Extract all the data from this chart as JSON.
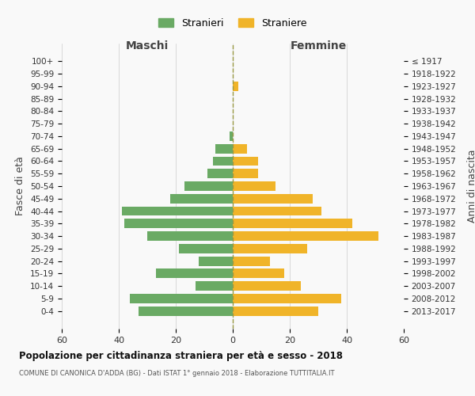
{
  "age_groups": [
    "100+",
    "95-99",
    "90-94",
    "85-89",
    "80-84",
    "75-79",
    "70-74",
    "65-69",
    "60-64",
    "55-59",
    "50-54",
    "45-49",
    "40-44",
    "35-39",
    "30-34",
    "25-29",
    "20-24",
    "15-19",
    "10-14",
    "5-9",
    "0-4"
  ],
  "birth_years": [
    "≤ 1917",
    "1918-1922",
    "1923-1927",
    "1928-1932",
    "1933-1937",
    "1938-1942",
    "1943-1947",
    "1948-1952",
    "1953-1957",
    "1958-1962",
    "1963-1967",
    "1968-1972",
    "1973-1977",
    "1978-1982",
    "1983-1987",
    "1988-1992",
    "1993-1997",
    "1998-2002",
    "2003-2007",
    "2008-2012",
    "2013-2017"
  ],
  "maschi": [
    0,
    0,
    0,
    0,
    0,
    0,
    1,
    6,
    7,
    9,
    17,
    22,
    39,
    38,
    30,
    19,
    12,
    27,
    13,
    36,
    33
  ],
  "femmine": [
    0,
    0,
    2,
    0,
    0,
    0,
    0,
    5,
    9,
    9,
    15,
    28,
    31,
    42,
    51,
    26,
    13,
    18,
    24,
    38,
    30
  ],
  "color_maschi": "#6aaa64",
  "color_femmine": "#f0b429",
  "title1": "Popolazione per cittadinanza straniera per età e sesso - 2018",
  "title2": "COMUNE DI CANONICA D'ADDA (BG) - Dati ISTAT 1° gennaio 2018 - Elaborazione TUTTITALIA.IT",
  "xlabel_maschi": "Maschi",
  "xlabel_femmine": "Femmine",
  "ylabel_left": "Fasce di età",
  "ylabel_right": "Anni di nascita",
  "legend_maschi": "Stranieri",
  "legend_femmine": "Straniere",
  "xlim": 60,
  "background_color": "#f9f9f9",
  "grid_color": "#cccccc"
}
